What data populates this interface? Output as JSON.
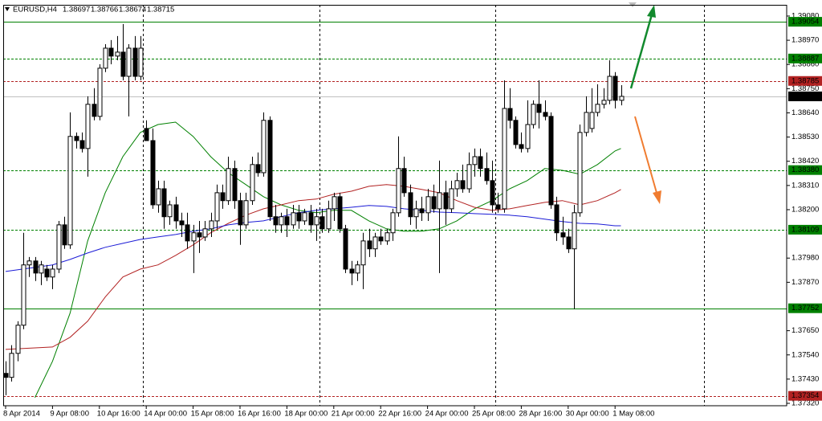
{
  "header": {
    "symbol": "EURUSD,H4",
    "ohlc": [
      1.38697,
      1.38766,
      1.38674,
      1.38715
    ]
  },
  "chart_data": {
    "type": "candlestick",
    "categories": [
      "8 Apr 2014",
      null,
      null,
      null,
      null,
      null,
      null,
      null,
      "9 Apr 08:00",
      null,
      null,
      null,
      null,
      null,
      null,
      null,
      "10 Apr 16:00",
      null,
      null,
      null,
      null,
      null,
      null,
      null,
      "14 Apr 00:00",
      null,
      null,
      null,
      null,
      null,
      null,
      null,
      "15 Apr 08:00",
      null,
      null,
      null,
      null,
      null,
      null,
      null,
      "16 Apr 16:00",
      null,
      null,
      null,
      null,
      null,
      null,
      null,
      "18 Apr 00:00",
      null,
      null,
      null,
      null,
      null,
      null,
      null,
      "21 Apr 00:00",
      null,
      null,
      null,
      null,
      null,
      null,
      null,
      "22 Apr 16:00",
      null,
      null,
      null,
      null,
      null,
      null,
      null,
      "24 Apr 00:00",
      null,
      null,
      null,
      null,
      null,
      null,
      null,
      "25 Apr 08:00",
      null,
      null,
      null,
      null,
      null,
      null,
      null,
      "28 Apr 16:00",
      null,
      null,
      null,
      null,
      null,
      null,
      null,
      "30 Apr 00:00",
      null,
      null,
      null,
      null,
      null,
      null,
      null,
      "1 May 08:00",
      null
    ],
    "open": [
      1.37456,
      1.37438,
      1.37547,
      1.37675,
      1.37949,
      1.37967,
      1.37912,
      1.3793,
      1.37894,
      1.3793,
      1.38131,
      1.3804,
      1.38533,
      1.38514,
      1.38478,
      1.38679,
      1.38624,
      1.38843,
      1.38934,
      1.38898,
      1.38916,
      1.38806,
      1.38934,
      1.38806,
      1.38569,
      1.38514,
      1.38222,
      1.38295,
      1.38168,
      1.38222,
      1.38149,
      1.38131,
      1.38058,
      1.38095,
      1.38076,
      1.38113,
      1.38149,
      1.38277,
      1.38241,
      1.38387,
      1.38241,
      1.38131,
      1.38241,
      1.38405,
      1.38368,
      1.38606,
      1.38168,
      1.38131,
      1.38168,
      1.38131,
      1.38186,
      1.38149,
      1.38186,
      1.38131,
      1.38168,
      1.38113,
      1.38204,
      1.38259,
      1.38113,
      1.3793,
      1.37912,
      1.37949,
      1.38058,
      1.38022,
      1.38076,
      1.38058,
      1.38095,
      1.38186,
      1.38387,
      1.38277,
      1.38168,
      1.38204,
      1.38186,
      1.38259,
      1.38204,
      1.38277,
      1.38204,
      1.38295,
      1.38332,
      1.38295,
      1.38405,
      1.38441,
      1.38387,
      1.38332,
      1.38222,
      1.38204,
      1.3866,
      1.38606,
      1.38496,
      1.38478,
      1.38587,
      1.38679,
      1.38642,
      1.38624,
      1.38222,
      1.38095,
      1.38076,
      1.38022,
      1.38186,
      1.38551,
      1.38569,
      1.38642,
      1.38679,
      1.38697,
      1.38806,
      1.38697
    ],
    "high": [
      1.37511,
      1.37584,
      1.37693,
      1.38095,
      1.37985,
      1.37985,
      1.37967,
      1.37949,
      1.37949,
      1.38149,
      1.38168,
      1.38642,
      1.38551,
      1.38551,
      1.38715,
      1.38752,
      1.38861,
      1.38952,
      1.38971,
      1.38989,
      1.39044,
      1.38952,
      1.38989,
      1.38989,
      1.38606,
      1.38569,
      1.38332,
      1.38332,
      1.38241,
      1.38259,
      1.38186,
      1.38186,
      1.38131,
      1.38149,
      1.38149,
      1.38186,
      1.38314,
      1.38314,
      1.38441,
      1.38423,
      1.38277,
      1.38277,
      1.38441,
      1.3846,
      1.38642,
      1.38624,
      1.38222,
      1.38186,
      1.38204,
      1.38222,
      1.38222,
      1.38204,
      1.38222,
      1.38204,
      1.38204,
      1.38241,
      1.38277,
      1.38277,
      1.38131,
      1.37967,
      1.37967,
      1.38095,
      1.38113,
      1.38095,
      1.38113,
      1.38113,
      1.38204,
      1.38533,
      1.38441,
      1.38314,
      1.38241,
      1.38259,
      1.38295,
      1.38314,
      1.38423,
      1.38332,
      1.38332,
      1.38368,
      1.38405,
      1.3846,
      1.38478,
      1.38478,
      1.3846,
      1.38423,
      1.38277,
      1.38788,
      1.38752,
      1.38624,
      1.38551,
      1.38697,
      1.38697,
      1.38788,
      1.38697,
      1.38642,
      1.38259,
      1.38168,
      1.38113,
      1.38222,
      1.38587,
      1.38715,
      1.38752,
      1.3877,
      1.38752,
      1.38879,
      1.38825,
      1.38766
    ],
    "low": [
      1.37357,
      1.37419,
      1.37511,
      1.37657,
      1.37894,
      1.37876,
      1.37857,
      1.37876,
      1.37839,
      1.37912,
      1.38022,
      1.38022,
      1.38478,
      1.3846,
      1.3835,
      1.38606,
      1.38606,
      1.38825,
      1.38861,
      1.38879,
      1.38788,
      1.38624,
      1.38788,
      1.38788,
      1.38514,
      1.38204,
      1.38186,
      1.38113,
      1.38131,
      1.38113,
      1.38076,
      1.38022,
      1.37912,
      1.38003,
      1.38058,
      1.38076,
      1.38113,
      1.38204,
      1.38222,
      1.38204,
      1.3804,
      1.38113,
      1.38222,
      1.3835,
      1.3835,
      1.38149,
      1.38095,
      1.38095,
      1.38076,
      1.38113,
      1.38113,
      1.38131,
      1.38095,
      1.38058,
      1.38095,
      1.38095,
      1.38149,
      1.38095,
      1.37912,
      1.37857,
      1.37876,
      1.37839,
      1.37985,
      1.37985,
      1.3804,
      1.3804,
      1.38058,
      1.38168,
      1.38259,
      1.38131,
      1.38113,
      1.38149,
      1.38149,
      1.38186,
      1.37912,
      1.38131,
      1.38186,
      1.38259,
      1.38277,
      1.38277,
      1.3835,
      1.3835,
      1.38314,
      1.38186,
      1.38186,
      1.38186,
      1.38569,
      1.38478,
      1.3846,
      1.3846,
      1.38569,
      1.38569,
      1.38606,
      1.38204,
      1.38058,
      1.3804,
      1.38003,
      1.37748,
      1.38168,
      1.38533,
      1.38551,
      1.38624,
      1.3866,
      1.38679,
      1.3866,
      1.38674
    ],
    "close": [
      1.37438,
      1.37547,
      1.37675,
      1.37949,
      1.37967,
      1.37912,
      1.37949,
      1.37894,
      1.3793,
      1.38131,
      1.3804,
      1.38533,
      1.38514,
      1.38478,
      1.38679,
      1.38624,
      1.38843,
      1.38934,
      1.38898,
      1.38916,
      1.38806,
      1.38934,
      1.38806,
      1.38934,
      1.38514,
      1.38222,
      1.38295,
      1.38168,
      1.38222,
      1.38149,
      1.38131,
      1.38058,
      1.38095,
      1.38076,
      1.38113,
      1.38149,
      1.38277,
      1.38241,
      1.38387,
      1.38241,
      1.38131,
      1.38241,
      1.38405,
      1.38368,
      1.38606,
      1.38168,
      1.38131,
      1.38168,
      1.38131,
      1.38186,
      1.38149,
      1.38186,
      1.38131,
      1.38168,
      1.38113,
      1.38204,
      1.38259,
      1.38113,
      1.3793,
      1.37912,
      1.37949,
      1.38058,
      1.38022,
      1.38076,
      1.38058,
      1.38095,
      1.38186,
      1.38387,
      1.38277,
      1.38168,
      1.38204,
      1.38186,
      1.38259,
      1.38204,
      1.38277,
      1.38204,
      1.38295,
      1.38332,
      1.38295,
      1.38405,
      1.38441,
      1.38387,
      1.38332,
      1.38222,
      1.38204,
      1.3866,
      1.38606,
      1.38496,
      1.38478,
      1.38587,
      1.38679,
      1.38642,
      1.38624,
      1.38222,
      1.38095,
      1.38076,
      1.38022,
      1.38186,
      1.38551,
      1.38642,
      1.38642,
      1.38679,
      1.38697,
      1.38806,
      1.38697,
      1.38715
    ],
    "indicators": [
      {
        "color": "#008000",
        "x": [
          5,
          8,
          11,
          14,
          17,
          20,
          23,
          26,
          29,
          32,
          35,
          38,
          41,
          44,
          47,
          50,
          53,
          56,
          59,
          62,
          65,
          68,
          71,
          74,
          77,
          80,
          83,
          86,
          89,
          92,
          95,
          98,
          101,
          104,
          105
        ],
        "values": [
          1.37346,
          1.37511,
          1.3773,
          1.38058,
          1.38277,
          1.38441,
          1.38551,
          1.38587,
          1.38598,
          1.38533,
          1.38441,
          1.38368,
          1.38314,
          1.38259,
          1.38222,
          1.38197,
          1.38186,
          1.38197,
          1.38197,
          1.38149,
          1.38113,
          1.38102,
          1.38102,
          1.38113,
          1.38149,
          1.38204,
          1.38241,
          1.38295,
          1.38332,
          1.38387,
          1.38379,
          1.38361,
          1.38405,
          1.38467,
          1.38478
        ]
      },
      {
        "color": "#b22222",
        "x": [
          0,
          8,
          11,
          14,
          17,
          20,
          23,
          26,
          29,
          32,
          35,
          38,
          41,
          44,
          47,
          50,
          53,
          56,
          59,
          62,
          65,
          68,
          71,
          74,
          77,
          80,
          83,
          86,
          89,
          92,
          95,
          98,
          101,
          104,
          105
        ],
        "values": [
          1.37565,
          1.37576,
          1.3762,
          1.37693,
          1.37803,
          1.37894,
          1.3793,
          1.37949,
          1.37992,
          1.3804,
          1.38095,
          1.38138,
          1.38175,
          1.38204,
          1.38222,
          1.38241,
          1.38248,
          1.3827,
          1.38284,
          1.38306,
          1.38314,
          1.38306,
          1.38292,
          1.38277,
          1.38241,
          1.38211,
          1.38197,
          1.38204,
          1.38219,
          1.38233,
          1.38241,
          1.38222,
          1.38241,
          1.38277,
          1.38292
        ]
      },
      {
        "color": "#1c1cd6",
        "x": [
          0,
          8,
          11,
          14,
          17,
          20,
          23,
          26,
          29,
          32,
          35,
          38,
          41,
          44,
          47,
          50,
          53,
          56,
          59,
          62,
          65,
          68,
          71,
          74,
          77,
          80,
          83,
          86,
          89,
          92,
          95,
          98,
          101,
          104,
          105
        ],
        "values": [
          1.37919,
          1.37949,
          1.37974,
          1.38003,
          1.38029,
          1.38047,
          1.38065,
          1.38076,
          1.38087,
          1.38102,
          1.38113,
          1.38131,
          1.38142,
          1.38149,
          1.38168,
          1.38186,
          1.38197,
          1.38204,
          1.38211,
          1.38219,
          1.38215,
          1.38204,
          1.38197,
          1.38189,
          1.38186,
          1.38182,
          1.38179,
          1.38175,
          1.38168,
          1.38157,
          1.38146,
          1.38138,
          1.38135,
          1.38127,
          1.38127
        ]
      }
    ],
    "levels": [
      {
        "value": 1.39054,
        "color": "#008000",
        "style": "solid",
        "label_background": "#008000"
      },
      {
        "value": 1.38887,
        "color": "#008000",
        "style": "dashed",
        "label_background": "#008000"
      },
      {
        "value": 1.38785,
        "color": "#b22222",
        "style": "dashed",
        "label_background": "#b22222"
      },
      {
        "value": 1.38715,
        "color": "#c0c0c0",
        "style": "solid",
        "label_background": "#000000"
      },
      {
        "value": 1.3838,
        "label": "1.38380",
        "color": "#008000",
        "style": "dashed",
        "label_background": "#008000"
      },
      {
        "value": 1.38109,
        "color": "#008000",
        "style": "dashed",
        "label_background": "#008000"
      },
      {
        "value": 1.37752,
        "color": "#008000",
        "style": "solid",
        "label_background": "#008000"
      },
      {
        "value": 1.37354,
        "color": "#b22222",
        "style": "dashed",
        "label_background": "#b22222"
      }
    ],
    "ylim": [
      1.37309,
      1.39131
    ],
    "yticks": [
      {
        "value": 1.3908,
        "label": "1.39080"
      },
      {
        "value": 1.3897,
        "label": "1.38970"
      },
      {
        "value": 1.3886,
        "label": "1.38860"
      },
      {
        "value": 1.3875,
        "label": "1.38750"
      },
      {
        "value": 1.3864,
        "label": "1.38640"
      },
      {
        "value": 1.3853,
        "label": "1.38530"
      },
      {
        "value": 1.3842,
        "label": "1.38420"
      },
      {
        "value": 1.3831,
        "label": "1.38310"
      },
      {
        "value": 1.382,
        "label": "1.38200"
      },
      {
        "value": 1.3798,
        "label": "1.37980"
      },
      {
        "value": 1.3787,
        "label": "1.37870"
      },
      {
        "value": 1.3765,
        "label": "1.37650"
      },
      {
        "value": 1.3754,
        "label": "1.37540"
      },
      {
        "value": 1.3743,
        "label": "1.37430"
      },
      {
        "value": 1.3732,
        "label": "1.37320"
      }
    ],
    "bull_color": "#ffffff",
    "bear_color": "#000000",
    "outline_color": "#000000"
  }
}
